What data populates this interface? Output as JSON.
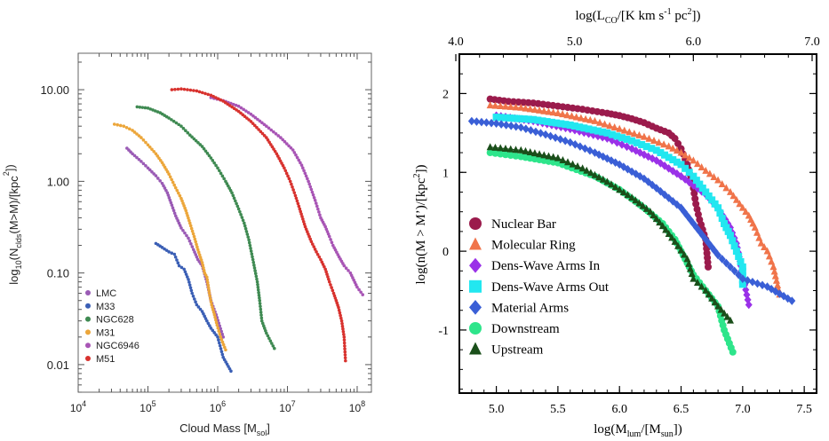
{
  "chart_data": [
    {
      "type": "scatter",
      "xlabel": "Cloud Mass [M",
      "xlabel_sub": "sol",
      "xlabel_end": "]",
      "ylabel_parts": [
        "log",
        "10",
        "(N",
        "clds",
        "(M>M)/[kpc",
        "2",
        "])"
      ],
      "x_scale": "log",
      "y_scale": "log",
      "xlim": [
        10000,
        160000000
      ],
      "ylim": [
        0.005,
        25
      ],
      "x_ticks": [
        {
          "v": 10000,
          "base": "10",
          "exp": "4"
        },
        {
          "v": 100000,
          "base": "10",
          "exp": "5"
        },
        {
          "v": 1000000,
          "base": "10",
          "exp": "6"
        },
        {
          "v": 10000000,
          "base": "10",
          "exp": "7"
        },
        {
          "v": 100000000,
          "base": "10",
          "exp": "8"
        }
      ],
      "y_ticks": [
        {
          "v": 10,
          "label": "10.00"
        },
        {
          "v": 1,
          "label": "1.00"
        },
        {
          "v": 0.1,
          "label": "0.10"
        },
        {
          "v": 0.01,
          "label": "0.01"
        }
      ],
      "legend_position": "bottom-left",
      "series": [
        {
          "name": "LMC",
          "color": "#9a5bb5",
          "points": [
            [
              50000,
              2.3
            ],
            [
              60000,
              2.0
            ],
            [
              80000,
              1.65
            ],
            [
              100000,
              1.4
            ],
            [
              130000,
              1.15
            ],
            [
              160000,
              0.95
            ],
            [
              190000,
              0.75
            ],
            [
              220000,
              0.55
            ],
            [
              250000,
              0.42
            ],
            [
              300000,
              0.31
            ],
            [
              380000,
              0.24
            ],
            [
              450000,
              0.18
            ],
            [
              520000,
              0.14
            ],
            [
              600000,
              0.12
            ],
            [
              700000,
              0.08
            ],
            [
              800000,
              0.05
            ],
            [
              950000,
              0.035
            ],
            [
              1200000,
              0.02
            ]
          ]
        },
        {
          "name": "M33",
          "color": "#3b5fb5",
          "points": [
            [
              130000,
              0.21
            ],
            [
              160000,
              0.19
            ],
            [
              200000,
              0.17
            ],
            [
              240000,
              0.16
            ],
            [
              280000,
              0.12
            ],
            [
              330000,
              0.11
            ],
            [
              380000,
              0.085
            ],
            [
              430000,
              0.06
            ],
            [
              500000,
              0.045
            ],
            [
              600000,
              0.038
            ],
            [
              700000,
              0.03
            ],
            [
              800000,
              0.025
            ],
            [
              1000000,
              0.02
            ],
            [
              1200000,
              0.012
            ],
            [
              1550000,
              0.0085
            ]
          ]
        },
        {
          "name": "NGC628",
          "color": "#3f8a52",
          "points": [
            [
              70000,
              6.5
            ],
            [
              100000,
              6.3
            ],
            [
              150000,
              5.6
            ],
            [
              200000,
              4.9
            ],
            [
              300000,
              4.0
            ],
            [
              400000,
              3.2
            ],
            [
              600000,
              2.4
            ],
            [
              800000,
              1.8
            ],
            [
              1000000,
              1.4
            ],
            [
              1300000,
              1.0
            ],
            [
              1600000,
              0.75
            ],
            [
              2000000,
              0.5
            ],
            [
              2400000,
              0.35
            ],
            [
              2800000,
              0.23
            ],
            [
              3200000,
              0.14
            ],
            [
              3700000,
              0.08
            ],
            [
              4000000,
              0.05
            ],
            [
              4300000,
              0.03
            ],
            [
              5000000,
              0.022
            ],
            [
              6500000,
              0.015
            ]
          ]
        },
        {
          "name": "M31",
          "color": "#eca63a",
          "points": [
            [
              33000,
              4.2
            ],
            [
              45000,
              4.0
            ],
            [
              60000,
              3.6
            ],
            [
              80000,
              3.0
            ],
            [
              100000,
              2.5
            ],
            [
              130000,
              2.0
            ],
            [
              160000,
              1.6
            ],
            [
              200000,
              1.2
            ],
            [
              250000,
              0.85
            ],
            [
              300000,
              0.65
            ],
            [
              350000,
              0.48
            ],
            [
              400000,
              0.35
            ],
            [
              460000,
              0.25
            ],
            [
              520000,
              0.18
            ],
            [
              600000,
              0.13
            ],
            [
              650000,
              0.1
            ],
            [
              700000,
              0.09
            ],
            [
              760000,
              0.06
            ],
            [
              820000,
              0.045
            ],
            [
              900000,
              0.035
            ],
            [
              980000,
              0.027
            ],
            [
              1100000,
              0.02
            ],
            [
              1300000,
              0.0145
            ]
          ]
        },
        {
          "name": "NGC6946",
          "color": "#a855b5",
          "points": [
            [
              800000,
              8.2
            ],
            [
              1200000,
              7.6
            ],
            [
              2000000,
              6.6
            ],
            [
              3000000,
              5.4
            ],
            [
              5000000,
              4.0
            ],
            [
              8000000,
              3.0
            ],
            [
              12000000,
              2.2
            ],
            [
              16000000,
              1.5
            ],
            [
              20000000,
              1.0
            ],
            [
              25000000,
              0.62
            ],
            [
              30000000,
              0.4
            ],
            [
              35000000,
              0.32
            ],
            [
              40000000,
              0.25
            ],
            [
              45000000,
              0.2
            ],
            [
              55000000,
              0.15
            ],
            [
              65000000,
              0.12
            ],
            [
              80000000,
              0.1
            ],
            [
              100000000,
              0.07
            ],
            [
              120000000,
              0.058
            ]
          ]
        },
        {
          "name": "M51",
          "color": "#d8322e",
          "points": [
            [
              220000,
              10.0
            ],
            [
              300000,
              10.2
            ],
            [
              500000,
              9.7
            ],
            [
              800000,
              8.7
            ],
            [
              1200000,
              7.5
            ],
            [
              2000000,
              5.8
            ],
            [
              3000000,
              4.5
            ],
            [
              5000000,
              3.0
            ],
            [
              7000000,
              2.0
            ],
            [
              9000000,
              1.4
            ],
            [
              11000000,
              1.0
            ],
            [
              13000000,
              0.7
            ],
            [
              15000000,
              0.5
            ],
            [
              18000000,
              0.32
            ],
            [
              22000000,
              0.22
            ],
            [
              26000000,
              0.17
            ],
            [
              30000000,
              0.14
            ],
            [
              35000000,
              0.11
            ],
            [
              40000000,
              0.08
            ],
            [
              46000000,
              0.06
            ],
            [
              50000000,
              0.05
            ],
            [
              54000000,
              0.042
            ],
            [
              60000000,
              0.03
            ],
            [
              65000000,
              0.02
            ],
            [
              68000000,
              0.011
            ]
          ]
        }
      ]
    },
    {
      "type": "scatter",
      "xlabel_parts": [
        "log(M",
        "lum",
        "/[M",
        "sun",
        "])"
      ],
      "x2label_parts": [
        "log(L",
        "CO",
        "/[K km s",
        "-1",
        " pc",
        "2",
        "])"
      ],
      "ylabel_parts": [
        "log(n(M > M’)/[kpc",
        "2",
        "])"
      ],
      "xlim": [
        4.7,
        7.6
      ],
      "ylim": [
        -1.8,
        2.5
      ],
      "x2lim": [
        4.0,
        7.0
      ],
      "x_ticks": [
        "5.0",
        "5.5",
        "6.0",
        "6.5",
        "7.0",
        "7.5"
      ],
      "x2_ticks": [
        "4.0",
        "5.0",
        "6.0",
        "7.0"
      ],
      "y_ticks": [
        "-1",
        "0",
        "1",
        "2"
      ],
      "legend_position": "bottom-left",
      "series": [
        {
          "name": "Nuclear Bar",
          "color": "#9b1b4c",
          "marker": "circle",
          "points": [
            [
              4.95,
              1.93
            ],
            [
              5.1,
              1.9
            ],
            [
              5.3,
              1.88
            ],
            [
              5.5,
              1.84
            ],
            [
              5.7,
              1.8
            ],
            [
              5.9,
              1.75
            ],
            [
              6.0,
              1.72
            ],
            [
              6.1,
              1.68
            ],
            [
              6.2,
              1.63
            ],
            [
              6.3,
              1.56
            ],
            [
              6.4,
              1.5
            ],
            [
              6.45,
              1.43
            ],
            [
              6.5,
              1.3
            ],
            [
              6.55,
              1.1
            ],
            [
              6.6,
              0.8
            ],
            [
              6.62,
              0.6
            ],
            [
              6.65,
              0.4
            ],
            [
              6.7,
              0.15
            ],
            [
              6.72,
              -0.2
            ]
          ]
        },
        {
          "name": "Molecular Ring",
          "color": "#f0744a",
          "marker": "triangle",
          "points": [
            [
              4.95,
              1.85
            ],
            [
              5.2,
              1.82
            ],
            [
              5.5,
              1.75
            ],
            [
              5.8,
              1.65
            ],
            [
              6.0,
              1.55
            ],
            [
              6.2,
              1.45
            ],
            [
              6.4,
              1.33
            ],
            [
              6.5,
              1.25
            ],
            [
              6.6,
              1.15
            ],
            [
              6.7,
              1.02
            ],
            [
              6.8,
              0.9
            ],
            [
              6.9,
              0.75
            ],
            [
              7.0,
              0.55
            ],
            [
              7.05,
              0.45
            ],
            [
              7.1,
              0.3
            ],
            [
              7.15,
              0.1
            ],
            [
              7.2,
              0.0
            ],
            [
              7.25,
              -0.2
            ],
            [
              7.3,
              -0.55
            ]
          ]
        },
        {
          "name": "Dens-Wave Arms In",
          "color": "#9a31e8",
          "marker": "diamond",
          "points": [
            [
              5.0,
              1.72
            ],
            [
              5.3,
              1.65
            ],
            [
              5.6,
              1.55
            ],
            [
              5.9,
              1.43
            ],
            [
              6.1,
              1.3
            ],
            [
              6.3,
              1.15
            ],
            [
              6.5,
              0.95
            ],
            [
              6.7,
              0.72
            ],
            [
              6.8,
              0.55
            ],
            [
              6.9,
              0.3
            ],
            [
              6.95,
              0.1
            ],
            [
              7.0,
              -0.3
            ],
            [
              7.05,
              -0.68
            ]
          ]
        },
        {
          "name": "Dens-Wave Arms Out",
          "color": "#22e7f0",
          "marker": "square",
          "points": [
            [
              5.0,
              1.7
            ],
            [
              5.3,
              1.67
            ],
            [
              5.6,
              1.6
            ],
            [
              5.9,
              1.5
            ],
            [
              6.1,
              1.4
            ],
            [
              6.3,
              1.28
            ],
            [
              6.5,
              1.1
            ],
            [
              6.6,
              0.95
            ],
            [
              6.7,
              0.75
            ],
            [
              6.8,
              0.55
            ],
            [
              6.85,
              0.35
            ],
            [
              6.9,
              0.2
            ],
            [
              6.95,
              0.0
            ],
            [
              7.0,
              -0.2
            ],
            [
              7.0,
              -0.42
            ]
          ]
        },
        {
          "name": "Material Arms",
          "color": "#3a5fd6",
          "marker": "diamond",
          "points": [
            [
              4.8,
              1.65
            ],
            [
              5.0,
              1.62
            ],
            [
              5.2,
              1.57
            ],
            [
              5.4,
              1.48
            ],
            [
              5.6,
              1.38
            ],
            [
              5.8,
              1.25
            ],
            [
              6.0,
              1.1
            ],
            [
              6.2,
              0.92
            ],
            [
              6.3,
              0.8
            ],
            [
              6.5,
              0.55
            ],
            [
              6.6,
              0.35
            ],
            [
              6.7,
              0.15
            ],
            [
              6.8,
              -0.05
            ],
            [
              6.9,
              -0.2
            ],
            [
              7.0,
              -0.35
            ],
            [
              7.2,
              -0.45
            ],
            [
              7.4,
              -0.63
            ]
          ]
        },
        {
          "name": "Downstream",
          "color": "#2ee58b",
          "marker": "circle",
          "points": [
            [
              4.95,
              1.25
            ],
            [
              5.2,
              1.2
            ],
            [
              5.5,
              1.12
            ],
            [
              5.8,
              0.95
            ],
            [
              6.0,
              0.78
            ],
            [
              6.2,
              0.55
            ],
            [
              6.35,
              0.35
            ],
            [
              6.45,
              0.15
            ],
            [
              6.5,
              0.0
            ],
            [
              6.55,
              -0.15
            ],
            [
              6.6,
              -0.3
            ],
            [
              6.7,
              -0.5
            ],
            [
              6.8,
              -0.7
            ],
            [
              6.85,
              -1.0
            ],
            [
              6.92,
              -1.28
            ]
          ]
        },
        {
          "name": "Upstream",
          "color": "#1a4f1a",
          "marker": "triangle",
          "points": [
            [
              4.95,
              1.32
            ],
            [
              5.2,
              1.28
            ],
            [
              5.5,
              1.18
            ],
            [
              5.7,
              1.05
            ],
            [
              5.9,
              0.88
            ],
            [
              6.1,
              0.68
            ],
            [
              6.25,
              0.5
            ],
            [
              6.35,
              0.32
            ],
            [
              6.45,
              0.12
            ],
            [
              6.55,
              -0.1
            ],
            [
              6.6,
              -0.35
            ],
            [
              6.7,
              -0.5
            ],
            [
              6.8,
              -0.7
            ],
            [
              6.9,
              -0.88
            ]
          ]
        }
      ]
    }
  ]
}
